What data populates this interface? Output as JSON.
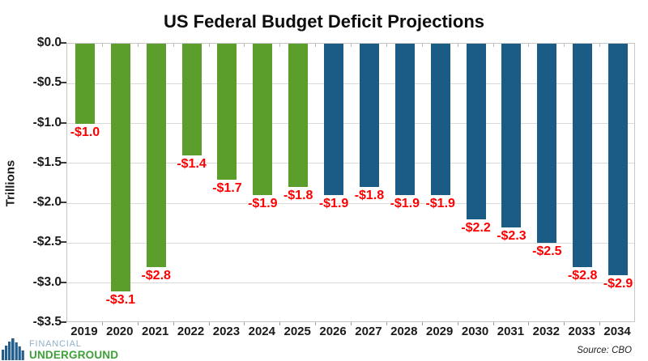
{
  "chart_data": {
    "type": "bar",
    "title": "US Federal Budget Deficit Projections",
    "ylabel": "Trillions",
    "xlabel": "",
    "categories": [
      "2019",
      "2020",
      "2021",
      "2022",
      "2023",
      "2024",
      "2025",
      "2026",
      "2027",
      "2028",
      "2029",
      "2030",
      "2031",
      "2032",
      "2033",
      "2034"
    ],
    "values": [
      -1.0,
      -3.1,
      -2.8,
      -1.4,
      -1.7,
      -1.9,
      -1.8,
      -1.9,
      -1.8,
      -1.9,
      -1.9,
      -2.2,
      -2.3,
      -2.5,
      -2.8,
      -2.9
    ],
    "data_labels": [
      "-$1.0",
      "-$3.1",
      "-$2.8",
      "-$1.4",
      "-$1.7",
      "-$1.9",
      "-$1.8",
      "-$1.9",
      "-$1.8",
      "-$1.9",
      "-$1.9",
      "-$2.2",
      "-$2.3",
      "-$2.5",
      "-$2.8",
      "-$2.9"
    ],
    "ytick_labels": [
      "$0.0",
      "-$0.5",
      "-$1.0",
      "-$1.5",
      "-$2.0",
      "-$2.5",
      "-$3.0",
      "-$3.5"
    ],
    "ylim": [
      -3.5,
      0
    ],
    "grid": "horizontal",
    "legend": "none",
    "projected_start_index": 7,
    "colors": {
      "actual_bar": "#5b9e2c",
      "projected_bar": "#1b5c87",
      "data_label": "#fe0000",
      "grid": "#d9d9d9"
    }
  },
  "footer": {
    "source": "Source: CBO",
    "logo": {
      "line1": "FINANCIAL",
      "line2": "UNDERGROUND",
      "line1_color": "#8fb0c9",
      "line2_color": "#3da135",
      "icon_color": "#245e8c"
    }
  }
}
